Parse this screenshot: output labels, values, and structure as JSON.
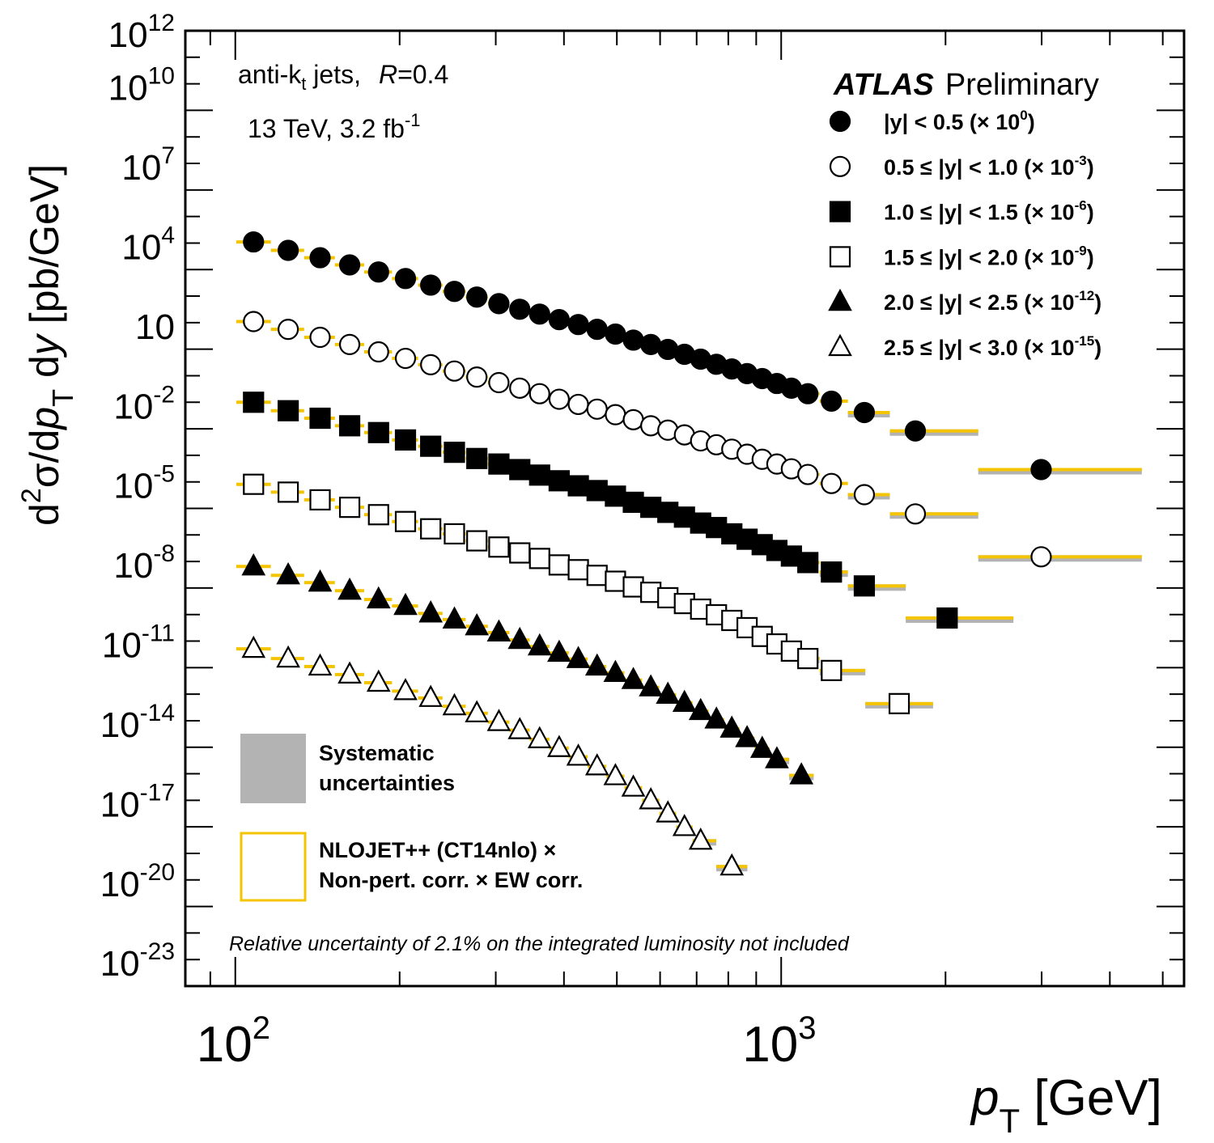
{
  "chart_data": {
    "type": "scatter",
    "xscale": "log",
    "yscale": "log",
    "xlim": [
      81,
      5470
    ],
    "ylim": [
      1e-24,
      1000000000000.0
    ],
    "xlabel": {
      "main": "p",
      "sub": "T",
      "unit": " [GeV]"
    },
    "ylabel": {
      "d": "d",
      "sup": "2",
      "mid": "σ/d",
      "p": "p",
      "sub": "T",
      "dy": " d",
      "y": "y",
      "unit": " [pb/GeV]"
    },
    "xticks": [
      {
        "base": "10",
        "exp": "2",
        "value": 100
      },
      {
        "base": "10",
        "exp": "3",
        "value": 1000
      }
    ],
    "yticks": [
      {
        "base": "10",
        "exp": "12",
        "value": 1000000000000.0
      },
      {
        "base": "10",
        "exp": "10",
        "value": 10000000000.0
      },
      {
        "base": "10",
        "exp": "7",
        "value": 10000000.0
      },
      {
        "base": "10",
        "exp": "4",
        "value": 10000.0
      },
      {
        "base": "10",
        "exp": "",
        "value": 10.0
      },
      {
        "base": "10",
        "exp": "-2",
        "value": 0.01
      },
      {
        "base": "10",
        "exp": "-5",
        "value": 1e-05
      },
      {
        "base": "10",
        "exp": "-8",
        "value": 1e-08
      },
      {
        "base": "10",
        "exp": "-11",
        "value": 1e-11
      },
      {
        "base": "10",
        "exp": "-14",
        "value": 1e-14
      },
      {
        "base": "10",
        "exp": "-17",
        "value": 1e-17
      },
      {
        "base": "10",
        "exp": "-20",
        "value": 1e-20
      },
      {
        "base": "10",
        "exp": "-23",
        "value": 1e-23
      }
    ],
    "grid": false,
    "legend_placement": "top-right",
    "colors": {
      "theory": "#f5c400",
      "systematic": "#b3b3b3",
      "data": "#000000"
    },
    "annotations": {
      "jets": "anti-k",
      "jets_sub": "t",
      "jets_rest": " jets,",
      "R": "R",
      "R_val": "=0.4",
      "energy": "13 TeV, 3.2 fb",
      "energy_exp": "-1",
      "atlas": "ATLAS",
      "preliminary": "Preliminary",
      "lumi_note": "Relative uncertainty of 2.1% on the integrated luminosity not included",
      "syst_line1": "Systematic",
      "syst_line2": "uncertainties",
      "theory_line1": "NLOJET++ (CT14nlo) ×",
      "theory_line2": "Non-pert. corr. × EW corr."
    },
    "series": [
      {
        "name": "|y| < 0.5 (× 10",
        "exp": "0",
        "marker": "filled-circle",
        "x": [
          108,
          125,
          143,
          162,
          183,
          205,
          228,
          252,
          277,
          304,
          332,
          361,
          392,
          425,
          460,
          497,
          536,
          577,
          620,
          665,
          712,
          761,
          812,
          866,
          923,
          982,
          1044,
          1119,
          1236,
          1420,
          1761,
          2994
        ],
        "y": [
          11000.0,
          5300.0,
          2800.0,
          1500.0,
          810,
          460,
          260,
          150,
          92,
          52,
          32,
          21,
          13,
          8.5,
          5.6,
          3.7,
          2.2,
          1.5,
          0.98,
          0.64,
          0.42,
          0.27,
          0.18,
          0.12,
          0.078,
          0.051,
          0.034,
          0.021,
          0.011,
          0.0041,
          0.00083,
          2.9e-05
        ]
      },
      {
        "name": "0.5 ≤ |y| < 1.0 (× 10",
        "exp": "-3",
        "marker": "open-circle",
        "x": [
          108,
          125,
          143,
          162,
          183,
          205,
          228,
          252,
          277,
          304,
          332,
          361,
          392,
          425,
          460,
          497,
          536,
          577,
          620,
          665,
          712,
          761,
          812,
          866,
          923,
          982,
          1044,
          1119,
          1236,
          1420,
          1761,
          2994
        ],
        "y": [
          11,
          5.6,
          2.8,
          1.5,
          0.79,
          0.45,
          0.26,
          0.15,
          0.089,
          0.055,
          0.034,
          0.021,
          0.013,
          0.0083,
          0.0055,
          0.0034,
          0.0022,
          0.0013,
          0.00089,
          0.00059,
          0.00035,
          0.00025,
          0.00017,
          0.00011,
          7.1e-05,
          4.7e-05,
          3.1e-05,
          1.9e-05,
          8.7e-06,
          3.3e-06,
          6.2e-07,
          1.5e-08
        ]
      },
      {
        "name": "1.0 ≤ |y| < 1.5 (× 10",
        "exp": "-6",
        "marker": "filled-square",
        "x": [
          108,
          125,
          143,
          162,
          183,
          205,
          228,
          252,
          277,
          304,
          332,
          361,
          392,
          425,
          460,
          497,
          536,
          577,
          620,
          665,
          712,
          761,
          812,
          866,
          923,
          982,
          1044,
          1119,
          1236,
          1420,
          2014
        ],
        "y": [
          0.01,
          0.0048,
          0.0025,
          0.0013,
          0.00072,
          0.00038,
          0.00022,
          0.00013,
          7.6e-05,
          4.7e-05,
          2.9e-05,
          1.8e-05,
          1.1e-05,
          7.1e-06,
          4.7e-06,
          2.9e-06,
          1.7e-06,
          1.1e-06,
          7.1e-07,
          4.7e-07,
          2.8e-07,
          1.9e-07,
          1.1e-07,
          6.9e-08,
          4.3e-08,
          2.6e-08,
          1.6e-08,
          9.1e-09,
          4e-09,
          1.2e-09,
          7.4e-11
        ]
      },
      {
        "name": "1.5 ≤ |y| < 2.0 (× 10",
        "exp": "-9",
        "marker": "open-square",
        "x": [
          108,
          125,
          143,
          162,
          183,
          205,
          228,
          252,
          277,
          304,
          332,
          361,
          392,
          425,
          460,
          497,
          536,
          577,
          620,
          665,
          712,
          761,
          812,
          866,
          923,
          982,
          1044,
          1119,
          1236,
          1645
        ],
        "y": [
          8.1e-06,
          4.1e-06,
          2.1e-06,
          1.1e-06,
          5.8e-07,
          3.2e-07,
          1.7e-07,
          1.1e-07,
          6e-08,
          3.5e-08,
          2.1e-08,
          1.3e-08,
          7.4e-09,
          4.9e-09,
          3e-09,
          1.8e-09,
          1.1e-09,
          6.9e-10,
          4.3e-10,
          2.6e-10,
          1.6e-10,
          9.8e-11,
          6e-11,
          3.2e-11,
          1.5e-11,
          7.8e-12,
          4.2e-12,
          2.2e-12,
          7.8e-13,
          4.4e-14
        ]
      },
      {
        "name": "2.0 ≤ |y| < 2.5 (× 10",
        "exp": "-12",
        "marker": "filled-triangle",
        "x": [
          108,
          125,
          143,
          162,
          183,
          205,
          228,
          252,
          277,
          304,
          332,
          361,
          392,
          425,
          460,
          497,
          536,
          577,
          620,
          665,
          712,
          761,
          812,
          866,
          923,
          982,
          1089
        ],
        "y": [
          6.5e-09,
          3e-09,
          1.6e-09,
          7.9e-10,
          3.7e-10,
          2.1e-10,
          1.1e-10,
          6.5e-11,
          3.6e-11,
          2.1e-11,
          1.1e-11,
          6.3e-12,
          3.6e-12,
          2.1e-12,
          1.1e-12,
          6.3e-13,
          3.4e-13,
          1.8e-13,
          9.5e-14,
          4.7e-14,
          2.3e-14,
          1.1e-14,
          5e-15,
          2.2e-15,
          8.7e-16,
          3.5e-16,
          8.7e-17
        ]
      },
      {
        "name": "2.5 ≤ |y| < 3.0 (× 10",
        "exp": "-15",
        "marker": "open-triangle",
        "x": [
          108,
          125,
          143,
          162,
          183,
          205,
          228,
          252,
          277,
          304,
          332,
          361,
          392,
          425,
          460,
          497,
          536,
          577,
          620,
          665,
          712,
          812
        ],
        "y": [
          5.1e-12,
          2.2e-12,
          1.1e-12,
          5.5e-13,
          2.7e-13,
          1.3e-13,
          7.2e-14,
          3.5e-14,
          1.9e-14,
          8.9e-15,
          4.4e-15,
          2e-15,
          9.3e-16,
          4.4e-16,
          1.9e-16,
          8.1e-17,
          3e-17,
          1e-17,
          3.2e-18,
          9.8e-19,
          3e-19,
          3.2e-20
        ]
      }
    ]
  }
}
